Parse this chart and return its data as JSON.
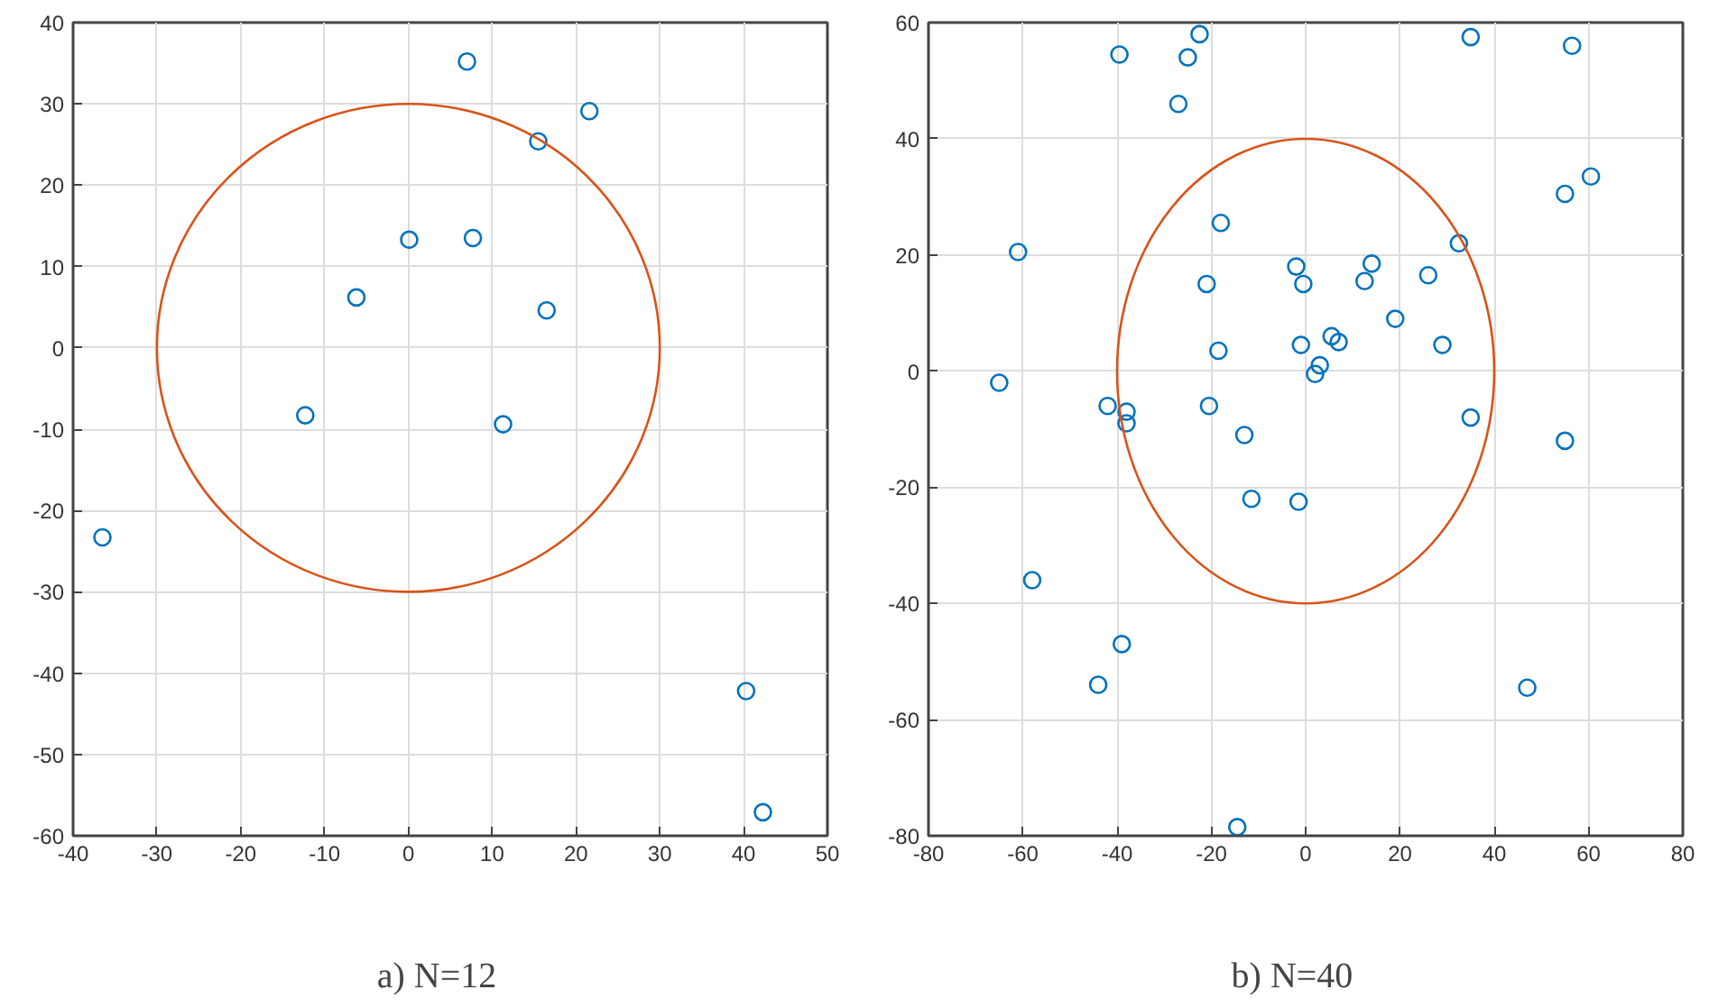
{
  "chart_data": [
    {
      "type": "scatter",
      "xlabel": "a)    N=12",
      "xlim": [
        -40,
        50
      ],
      "ylim": [
        -60,
        40
      ],
      "xticks": [
        -40,
        -30,
        -20,
        -10,
        0,
        10,
        20,
        30,
        40,
        50
      ],
      "yticks": [
        -60,
        -50,
        -40,
        -30,
        -20,
        -10,
        0,
        10,
        20,
        30,
        40
      ],
      "grid": true,
      "marker": "circle",
      "series": [
        {
          "type": "scatter",
          "color": "#0072bd",
          "x": [
            -36.5,
            -12.3,
            -6.2,
            0.1,
            7,
            7.7,
            11.3,
            15.5,
            16.5,
            21.6,
            40.3,
            42.3
          ],
          "values": [
            -23.3,
            -8.3,
            6.2,
            13.3,
            35.2,
            13.5,
            -9.4,
            25.4,
            4.6,
            29.1,
            -42.2,
            -57.1
          ]
        }
      ]
    },
    {
      "type": "scatter",
      "xlabel": "b)    N=40",
      "xlim": [
        -80,
        80
      ],
      "ylim": [
        -80,
        60
      ],
      "xticks": [
        -80,
        -60,
        -40,
        -20,
        0,
        20,
        40,
        60,
        80
      ],
      "yticks": [
        -80,
        -60,
        -40,
        -20,
        0,
        20,
        40,
        60
      ],
      "grid": true,
      "marker": "circle",
      "series": [
        {
          "type": "scatter",
          "color": "#0072bd",
          "x": [
            -65,
            -61,
            -58,
            -44,
            -42,
            -39.5,
            -39,
            -38,
            -38,
            -27,
            -25,
            -22.5,
            -21,
            -20.5,
            -18,
            -18.5,
            -14.5,
            -13,
            -11.5,
            -2,
            -1.5,
            -1,
            -0.5,
            2,
            3,
            5.5,
            7,
            12.5,
            14,
            19,
            26,
            29,
            32.5,
            35,
            35,
            47,
            55,
            55,
            56.5,
            60.5
          ],
          "values": [
            -2,
            20.5,
            -36,
            -54,
            -6,
            54.5,
            -47,
            -7,
            -9,
            46,
            54,
            58,
            15,
            -6,
            25.5,
            3.5,
            -78.5,
            -11,
            -22,
            18,
            -22.5,
            4.5,
            15,
            -0.5,
            1,
            6,
            5,
            15.5,
            18.5,
            9,
            16.5,
            4.5,
            22,
            -8,
            57.5,
            -54.5,
            -12,
            30.5,
            56,
            33.5
          ]
        }
      ]
    }
  ]
}
